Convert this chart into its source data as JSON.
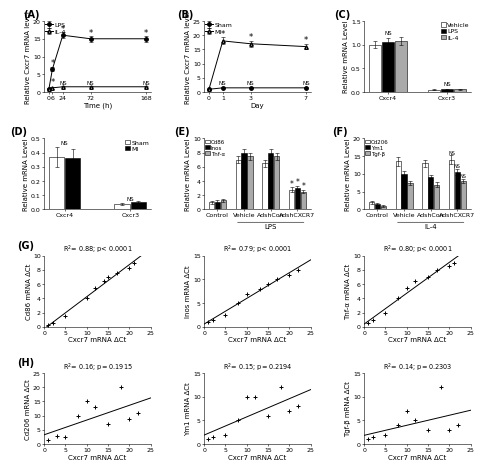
{
  "panel_A": {
    "time": [
      0,
      6,
      24,
      72,
      168
    ],
    "LPS_mean": [
      1,
      6.5,
      16,
      15,
      15
    ],
    "LPS_err": [
      0.15,
      0.7,
      0.9,
      0.9,
      0.9
    ],
    "IL4_mean": [
      1,
      1.2,
      1.5,
      1.5,
      1.5
    ],
    "IL4_err": [
      0.15,
      0.2,
      0.2,
      0.2,
      0.2
    ],
    "ylabel": "Relative Cxcr7 mRNA level",
    "xlabel": "Time (h)",
    "ylim": [
      0,
      20
    ],
    "yticks": [
      0,
      5,
      10,
      15,
      20
    ],
    "label": "(A)"
  },
  "panel_B": {
    "time": [
      0,
      1,
      3,
      7
    ],
    "Sham_mean": [
      1,
      1.5,
      1.5,
      1.5
    ],
    "Sham_err": [
      0.1,
      0.2,
      0.2,
      0.2
    ],
    "MI_mean": [
      1,
      18,
      17,
      16
    ],
    "MI_err": [
      0.15,
      1.2,
      1.0,
      1.0
    ],
    "ylabel": "Relative Cxcr7 mRNA level",
    "xlabel": "Day",
    "ylim": [
      0,
      25
    ],
    "yticks": [
      0,
      5,
      10,
      15,
      20,
      25
    ],
    "label": "(B)"
  },
  "panel_C": {
    "groups": [
      "Cxcr4",
      "Cxcr3"
    ],
    "vehicle_mean": [
      1.0,
      0.05
    ],
    "vehicle_err": [
      0.08,
      0.008
    ],
    "LPS_mean": [
      1.05,
      0.06
    ],
    "LPS_err": [
      0.09,
      0.01
    ],
    "IL4_mean": [
      1.08,
      0.06
    ],
    "IL4_err": [
      0.09,
      0.01
    ],
    "ylabel": "Relative mRNA Level",
    "ylim": [
      0,
      1.5
    ],
    "yticks": [
      0.0,
      0.5,
      1.0,
      1.5
    ],
    "label": "(C)",
    "colors": [
      "white",
      "black",
      "#aaaaaa"
    ]
  },
  "panel_D": {
    "groups": [
      "Cxcr4",
      "Cxcr3"
    ],
    "sham_mean": [
      0.37,
      0.04
    ],
    "sham_err": [
      0.07,
      0.008
    ],
    "MI_mean": [
      0.36,
      0.05
    ],
    "MI_err": [
      0.065,
      0.009
    ],
    "ylabel": "Relative mRNA Level",
    "ylim": [
      0,
      0.5
    ],
    "yticks": [
      0.0,
      0.1,
      0.2,
      0.3,
      0.4,
      0.5
    ],
    "label": "(D)",
    "colors": [
      "white",
      "black"
    ]
  },
  "panel_E": {
    "groups": [
      "Control",
      "Vehicle",
      "AdshCon",
      "AdshCXCR7"
    ],
    "Cd86_mean": [
      1.0,
      7.0,
      6.5,
      2.8
    ],
    "Cd86_err": [
      0.2,
      0.5,
      0.5,
      0.3
    ],
    "Inos_mean": [
      1.1,
      8.0,
      8.0,
      3.0
    ],
    "Inos_err": [
      0.2,
      0.5,
      0.5,
      0.3
    ],
    "Tnfa_mean": [
      1.3,
      7.5,
      7.5,
      2.5
    ],
    "Tnfa_err": [
      0.2,
      0.5,
      0.5,
      0.25
    ],
    "ylabel": "Relative mRNA Level",
    "ylim": [
      0,
      10
    ],
    "yticks": [
      0,
      2,
      4,
      6,
      8,
      10
    ],
    "label": "(E)",
    "xlabel": "LPS",
    "colors": [
      "white",
      "black",
      "#aaaaaa"
    ]
  },
  "panel_F": {
    "groups": [
      "Control",
      "Vehicle",
      "AdshCon",
      "AdshCXCR7"
    ],
    "Cd206_mean": [
      2.0,
      13.5,
      13.0,
      14.0
    ],
    "Cd206_err": [
      0.4,
      1.2,
      1.0,
      1.2
    ],
    "Ym1_mean": [
      1.5,
      10.0,
      9.0,
      10.5
    ],
    "Ym1_err": [
      0.3,
      0.8,
      0.8,
      0.9
    ],
    "Tgfb_mean": [
      1.0,
      7.5,
      7.0,
      8.0
    ],
    "Tgfb_err": [
      0.2,
      0.6,
      0.6,
      0.7
    ],
    "ylabel": "Relative mRNA Level",
    "ylim": [
      0,
      20
    ],
    "yticks": [
      0,
      5,
      10,
      15,
      20
    ],
    "label": "(F)",
    "xlabel": "IL-4",
    "colors": [
      "white",
      "black",
      "#aaaaaa"
    ]
  },
  "panel_G1": {
    "x": [
      1,
      2,
      5,
      10,
      12,
      14,
      15,
      17,
      20,
      21
    ],
    "y": [
      0.3,
      0.5,
      1.5,
      4.0,
      5.5,
      6.5,
      7.0,
      7.5,
      8.2,
      9.0
    ],
    "r2": "R$^2$= 0.88; p< 0.0001",
    "xlabel": "Cxcr7 mRNA ΔCt",
    "ylabel": "Cd86 mRNA ΔCt",
    "xlim": [
      0,
      25
    ],
    "ylim": [
      0,
      10
    ],
    "xticks": [
      0,
      5,
      10,
      15,
      20,
      25
    ],
    "yticks": [
      0,
      2,
      4,
      6,
      8,
      10
    ],
    "label": "(G)"
  },
  "panel_G2": {
    "x": [
      1,
      2,
      5,
      8,
      10,
      13,
      15,
      17,
      20,
      22
    ],
    "y": [
      1.0,
      1.5,
      2.5,
      5.0,
      7.0,
      8.0,
      9.0,
      10.0,
      11.0,
      12.0
    ],
    "r2": "R$^2$= 0.79; p< 0.0001",
    "xlabel": "Cxcr7 mRNA ΔCt",
    "ylabel": "Inos mRNA ΔCt",
    "xlim": [
      0,
      25
    ],
    "ylim": [
      0,
      15
    ],
    "xticks": [
      0,
      5,
      10,
      15,
      20,
      25
    ],
    "yticks": [
      0,
      5,
      10,
      15
    ],
    "label": ""
  },
  "panel_G3": {
    "x": [
      1,
      2,
      5,
      8,
      10,
      12,
      15,
      17,
      20,
      21
    ],
    "y": [
      0.5,
      1.0,
      2.0,
      4.0,
      5.5,
      6.5,
      7.0,
      8.0,
      8.5,
      9.0
    ],
    "r2": "R$^2$= 0.80; p< 0.0001",
    "xlabel": "Cxcr7 mRNA ΔCt",
    "ylabel": "Tnf-α mRNA ΔCt",
    "xlim": [
      0,
      25
    ],
    "ylim": [
      0,
      10
    ],
    "xticks": [
      0,
      5,
      10,
      15,
      20,
      25
    ],
    "yticks": [
      0,
      2,
      4,
      6,
      8,
      10
    ],
    "label": ""
  },
  "panel_H1": {
    "x": [
      1,
      3,
      5,
      8,
      10,
      12,
      15,
      18,
      20,
      22
    ],
    "y": [
      1.5,
      3.0,
      2.5,
      10.0,
      15.0,
      13.0,
      7.0,
      20.0,
      9.0,
      11.0
    ],
    "r2": "R$^2$= 0.16; p= 0.1915",
    "xlabel": "Cxcr7 mRNA ΔCt",
    "ylabel": "Cd206 mRNA ΔCt",
    "xlim": [
      0,
      25
    ],
    "ylim": [
      0,
      25
    ],
    "xticks": [
      0,
      5,
      10,
      15,
      20,
      25
    ],
    "yticks": [
      0,
      5,
      10,
      15,
      20,
      25
    ],
    "label": "(H)"
  },
  "panel_H2": {
    "x": [
      1,
      2,
      5,
      8,
      10,
      12,
      15,
      18,
      20,
      22
    ],
    "y": [
      1.0,
      1.5,
      2.0,
      5.0,
      10.0,
      10.0,
      6.0,
      12.0,
      7.0,
      8.0
    ],
    "r2": "R$^2$= 0.15; p= 0.2194",
    "xlabel": "Cxcr7 mRNA ΔCt",
    "ylabel": "Ym1 mRNA ΔCt",
    "xlim": [
      0,
      25
    ],
    "ylim": [
      0,
      15
    ],
    "xticks": [
      0,
      5,
      10,
      15,
      20,
      25
    ],
    "yticks": [
      0,
      5,
      10,
      15
    ],
    "label": ""
  },
  "panel_H3": {
    "x": [
      1,
      2,
      5,
      8,
      10,
      12,
      15,
      18,
      20,
      22
    ],
    "y": [
      1.0,
      1.5,
      2.0,
      4.0,
      7.0,
      5.0,
      3.0,
      12.0,
      3.0,
      4.0
    ],
    "r2": "R$^2$= 0.14; p= 0.2303",
    "xlabel": "Cxcr7 mRNA ΔCt",
    "ylabel": "Tgf-β mRNA ΔCt",
    "xlim": [
      0,
      25
    ],
    "ylim": [
      0,
      15
    ],
    "xticks": [
      0,
      5,
      10,
      15,
      20,
      25
    ],
    "yticks": [
      0,
      5,
      10,
      15
    ],
    "label": ""
  },
  "bg_color": "#ffffff",
  "fontsize_label": 5.0,
  "fontsize_tick": 4.5,
  "fontsize_legend": 4.5,
  "fontsize_panel": 7,
  "fontsize_sig": 4.5,
  "linewidth": 0.7,
  "markersize": 2.5
}
